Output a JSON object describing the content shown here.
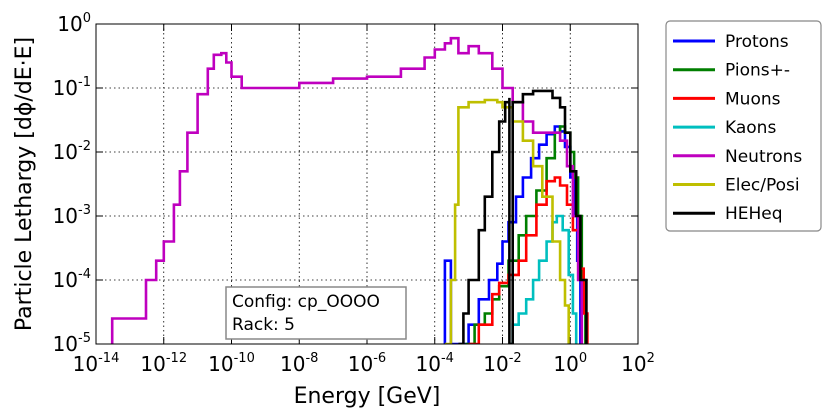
{
  "chart_data": {
    "type": "line",
    "xlabel": "Energy [GeV]",
    "ylabel": "Particle Lethargy [dϕ/dE·E]",
    "x_scale": "log",
    "y_scale": "log",
    "xlim": [
      1e-14,
      100
    ],
    "ylim": [
      1e-05,
      1
    ],
    "x_ticks": [
      {
        "base": "10",
        "exp": "-14",
        "value": 1e-14
      },
      {
        "base": "10",
        "exp": "-12",
        "value": 1e-12
      },
      {
        "base": "10",
        "exp": "-10",
        "value": 1e-10
      },
      {
        "base": "10",
        "exp": "-8",
        "value": 1e-08
      },
      {
        "base": "10",
        "exp": "-6",
        "value": 1e-06
      },
      {
        "base": "10",
        "exp": "-4",
        "value": 0.0001
      },
      {
        "base": "10",
        "exp": "-2",
        "value": 0.01
      },
      {
        "base": "10",
        "exp": "0",
        "value": 1
      },
      {
        "base": "10",
        "exp": "2",
        "value": 100
      }
    ],
    "y_ticks": [
      {
        "base": "10",
        "exp": "-5",
        "value": 1e-05
      },
      {
        "base": "10",
        "exp": "-4",
        "value": 0.0001
      },
      {
        "base": "10",
        "exp": "-3",
        "value": 0.001
      },
      {
        "base": "10",
        "exp": "-2",
        "value": 0.01
      },
      {
        "base": "10",
        "exp": "-1",
        "value": 0.1
      },
      {
        "base": "10",
        "exp": "0",
        "value": 1
      }
    ],
    "grid": true,
    "legend_position": "outside-top-right",
    "annotation": [
      "Config: cp_OOOO",
      "Rack: 5"
    ],
    "series": [
      {
        "name": "Protons",
        "color": "#0000ff",
        "points": [
          [
            0.0002,
            1e-05
          ],
          [
            0.0002,
            0.0002
          ],
          [
            0.0003,
            0.0002
          ],
          [
            0.0003,
            1e-05
          ],
          [
            0.001,
            2e-05
          ],
          [
            0.002,
            5e-05
          ],
          [
            0.004,
            0.0001
          ],
          [
            0.007,
            0.00018
          ],
          [
            0.01,
            0.0004
          ],
          [
            0.015,
            0.0008
          ],
          [
            0.025,
            0.002
          ],
          [
            0.04,
            0.004
          ],
          [
            0.07,
            0.008
          ],
          [
            0.12,
            0.013
          ],
          [
            0.2,
            0.019
          ],
          [
            0.35,
            0.025
          ],
          [
            0.5,
            0.021
          ],
          [
            0.7,
            0.012
          ],
          [
            1.0,
            0.004
          ],
          [
            1.3,
            0.001
          ],
          [
            1.6,
            0.0002
          ],
          [
            2.0,
            1e-05
          ]
        ]
      },
      {
        "name": "Pions+-",
        "color": "#007f00",
        "points": [
          [
            0.0008,
            1e-05
          ],
          [
            0.0015,
            2e-05
          ],
          [
            0.003,
            3e-05
          ],
          [
            0.005,
            5e-05
          ],
          [
            0.008,
            8e-05
          ],
          [
            0.015,
            0.0002
          ],
          [
            0.03,
            0.0005
          ],
          [
            0.05,
            0.001
          ],
          [
            0.1,
            0.0025
          ],
          [
            0.2,
            0.008
          ],
          [
            0.35,
            0.02
          ],
          [
            0.5,
            0.025
          ],
          [
            0.7,
            0.02
          ],
          [
            1.0,
            0.01
          ],
          [
            1.3,
            0.004
          ],
          [
            1.7,
            0.001
          ],
          [
            2.2,
            0.0001
          ],
          [
            2.8,
            1e-05
          ]
        ]
      },
      {
        "name": "Muons",
        "color": "#ff0000",
        "points": [
          [
            0.001,
            1e-05
          ],
          [
            0.002,
            2e-05
          ],
          [
            0.005,
            6e-05
          ],
          [
            0.008,
            9e-05
          ],
          [
            0.015,
            0.00012
          ],
          [
            0.03,
            0.0002
          ],
          [
            0.05,
            0.0005
          ],
          [
            0.1,
            0.0015
          ],
          [
            0.2,
            0.0035
          ],
          [
            0.35,
            0.004
          ],
          [
            0.5,
            0.003
          ],
          [
            0.8,
            0.0015
          ],
          [
            1.2,
            0.0006
          ],
          [
            1.8,
            0.00015
          ],
          [
            2.5,
            3e-05
          ],
          [
            3.2,
            1e-05
          ]
        ]
      },
      {
        "name": "Kaons",
        "color": "#00bfbf",
        "points": [
          [
            0.015,
            1e-05
          ],
          [
            0.02,
            2e-05
          ],
          [
            0.03,
            3e-05
          ],
          [
            0.05,
            5e-05
          ],
          [
            0.08,
            0.0001
          ],
          [
            0.12,
            0.0002
          ],
          [
            0.2,
            0.0004
          ],
          [
            0.3,
            0.0008
          ],
          [
            0.4,
            0.001
          ],
          [
            0.6,
            0.0006
          ],
          [
            0.9,
            0.00012
          ],
          [
            1.2,
            3e-05
          ],
          [
            1.5,
            1e-05
          ]
        ]
      },
      {
        "name": "Neutrons",
        "color": "#bf00bf",
        "points": [
          [
            3e-14,
            1e-05
          ],
          [
            3e-14,
            2.5e-05
          ],
          [
            1e-13,
            2.5e-05
          ],
          [
            3e-13,
            0.0001
          ],
          [
            6e-13,
            0.0002
          ],
          [
            1e-12,
            0.0004
          ],
          [
            2e-12,
            0.0015
          ],
          [
            3e-12,
            0.005
          ],
          [
            5e-12,
            0.02
          ],
          [
            1e-11,
            0.08
          ],
          [
            2e-11,
            0.2
          ],
          [
            3e-11,
            0.33
          ],
          [
            5e-11,
            0.35
          ],
          [
            7e-11,
            0.25
          ],
          [
            1e-10,
            0.15
          ],
          [
            2e-10,
            0.1
          ],
          [
            1e-09,
            0.1
          ],
          [
            1e-08,
            0.12
          ],
          [
            1e-07,
            0.14
          ],
          [
            1e-06,
            0.15
          ],
          [
            1e-05,
            0.2
          ],
          [
            5e-05,
            0.3
          ],
          [
            0.0001,
            0.4
          ],
          [
            0.0002,
            0.5
          ],
          [
            0.0003,
            0.6
          ],
          [
            0.0005,
            0.35
          ],
          [
            0.001,
            0.45
          ],
          [
            0.002,
            0.35
          ],
          [
            0.005,
            0.2
          ],
          [
            0.01,
            0.1
          ],
          [
            0.02,
            0.06
          ],
          [
            0.04,
            0.03
          ],
          [
            0.08,
            0.02
          ],
          [
            0.15,
            0.02
          ],
          [
            0.3,
            0.02
          ],
          [
            0.5,
            0.015
          ],
          [
            0.8,
            0.006
          ],
          [
            1.2,
            0.001
          ],
          [
            1.7,
            0.0001
          ],
          [
            2.2,
            1e-05
          ]
        ]
      },
      {
        "name": "Elec/Posi",
        "color": "#bfbf00",
        "points": [
          [
            0.0002,
            1e-05
          ],
          [
            0.0003,
            0.0001
          ],
          [
            0.0004,
            0.0015
          ],
          [
            0.0005,
            0.05
          ],
          [
            0.001,
            0.06
          ],
          [
            0.003,
            0.065
          ],
          [
            0.007,
            0.06
          ],
          [
            0.01,
            0.05
          ],
          [
            0.02,
            0.03
          ],
          [
            0.04,
            0.015
          ],
          [
            0.08,
            0.006
          ],
          [
            0.15,
            0.002
          ],
          [
            0.3,
            0.0004
          ],
          [
            0.5,
            0.0001
          ],
          [
            0.7,
            4e-05
          ],
          [
            0.9,
            1e-05
          ]
        ]
      },
      {
        "name": "HEHeq",
        "color": "#000000",
        "points": [
          [
            0.0005,
            1e-05
          ],
          [
            0.0007,
            3e-05
          ],
          [
            0.001,
            0.0001
          ],
          [
            0.002,
            0.0006
          ],
          [
            0.003,
            0.002
          ],
          [
            0.005,
            0.01
          ],
          [
            0.008,
            0.03
          ],
          [
            0.012,
            0.06
          ],
          [
            0.016,
            0.07
          ],
          [
            0.016,
            1e-05
          ],
          [
            0.02,
            0.06
          ],
          [
            0.04,
            0.08
          ],
          [
            0.08,
            0.09
          ],
          [
            0.15,
            0.09
          ],
          [
            0.3,
            0.07
          ],
          [
            0.5,
            0.05
          ],
          [
            0.7,
            0.02
          ],
          [
            1.0,
            0.005
          ],
          [
            1.5,
            0.001
          ],
          [
            2.0,
            0.0001
          ],
          [
            3.0,
            1e-05
          ]
        ]
      }
    ]
  }
}
